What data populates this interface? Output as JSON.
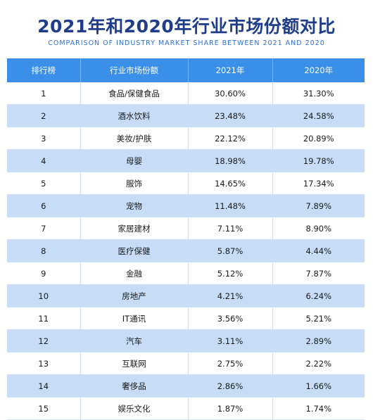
{
  "header": {
    "title": "2021年和2020年行业市场份额对比",
    "subtitle": "COMPARISON OF INDUSTRY MARKET SHARE BETWEEN 2021 AND 2020"
  },
  "table": {
    "columns": [
      "排行榜",
      "行业市场份额",
      "2021年",
      "2020年"
    ],
    "rows": [
      {
        "rank": "1",
        "industry": "食品/保健食品",
        "y2021": "30.60%",
        "y2020": "31.30%"
      },
      {
        "rank": "2",
        "industry": "酒水饮料",
        "y2021": "23.48%",
        "y2020": "24.58%"
      },
      {
        "rank": "3",
        "industry": "美妆/护肤",
        "y2021": "22.12%",
        "y2020": "20.89%"
      },
      {
        "rank": "4",
        "industry": "母婴",
        "y2021": "18.98%",
        "y2020": "19.78%"
      },
      {
        "rank": "5",
        "industry": "服饰",
        "y2021": "14.65%",
        "y2020": "17.34%"
      },
      {
        "rank": "6",
        "industry": "宠物",
        "y2021": "11.48%",
        "y2020": "7.89%"
      },
      {
        "rank": "7",
        "industry": "家居建材",
        "y2021": "7.11%",
        "y2020": "8.90%"
      },
      {
        "rank": "8",
        "industry": "医疗保健",
        "y2021": "5.87%",
        "y2020": "4.44%"
      },
      {
        "rank": "9",
        "industry": "金融",
        "y2021": "5.12%",
        "y2020": "7.87%"
      },
      {
        "rank": "10",
        "industry": "房地产",
        "y2021": "4.21%",
        "y2020": "6.24%"
      },
      {
        "rank": "11",
        "industry": "IT通讯",
        "y2021": "3.56%",
        "y2020": "5.21%"
      },
      {
        "rank": "12",
        "industry": "汽车",
        "y2021": "3.11%",
        "y2020": "2.89%"
      },
      {
        "rank": "13",
        "industry": "互联网",
        "y2021": "2.75%",
        "y2020": "2.22%"
      },
      {
        "rank": "14",
        "industry": "奢侈品",
        "y2021": "2.86%",
        "y2020": "1.66%"
      },
      {
        "rank": "15",
        "industry": "娱乐文化",
        "y2021": "1.87%",
        "y2020": "1.74%"
      }
    ]
  },
  "colors": {
    "title": "#1f3d8a",
    "subtitle": "#2d6fd2",
    "header_bg": "#3a8fe8",
    "stripe_bg": "#c6dcf7"
  }
}
